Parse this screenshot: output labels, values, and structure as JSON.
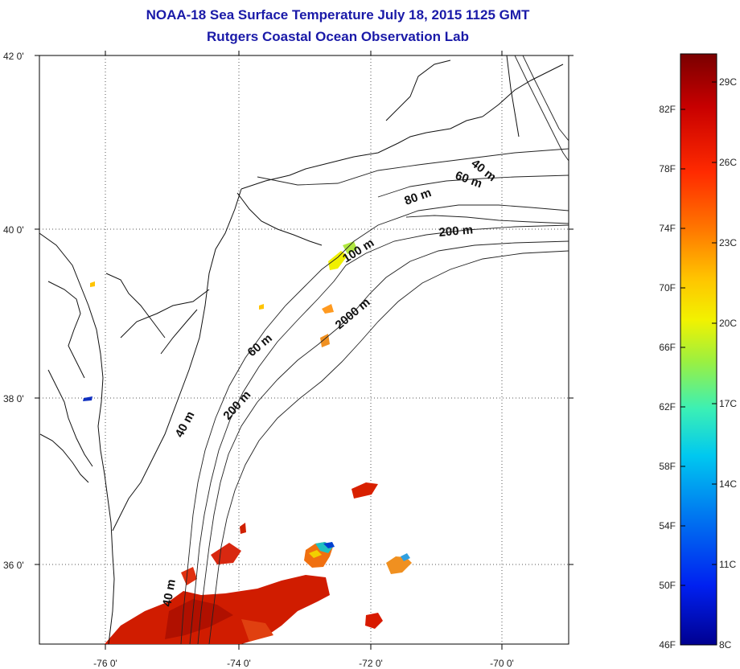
{
  "header": {
    "title": "NOAA-18 Sea Surface Temperature July 18, 2015 1125 GMT",
    "subtitle": "Rutgers Coastal Ocean Observation Lab"
  },
  "map": {
    "lat_ticks": [
      "42 0'",
      "40 0'",
      "38 0'",
      "36 0'"
    ],
    "lon_ticks": [
      "-76 0'",
      "-74 0'",
      "-72 0'",
      "-70 0'"
    ],
    "isobath_labels": [
      "40 m",
      "60 m",
      "80 m",
      "200 m",
      "100 m",
      "2000 m",
      "60 m",
      "200 m",
      "40 m",
      "40 m"
    ],
    "grid": "dotted"
  },
  "colorbar": {
    "fahrenheit_labels": [
      "82F",
      "78F",
      "74F",
      "70F",
      "66F",
      "62F",
      "58F",
      "54F",
      "50F",
      "46F"
    ],
    "celsius_labels": [
      "29C",
      "26C",
      "23C",
      "20C",
      "17C",
      "14C",
      "11C",
      "8C"
    ],
    "colors": [
      "#7a0000",
      "#c80000",
      "#ff2a00",
      "#ff7a00",
      "#ffc400",
      "#f2f200",
      "#9cf040",
      "#3cf0b4",
      "#00c8f0",
      "#0078f0",
      "#0020f0",
      "#000090"
    ]
  }
}
